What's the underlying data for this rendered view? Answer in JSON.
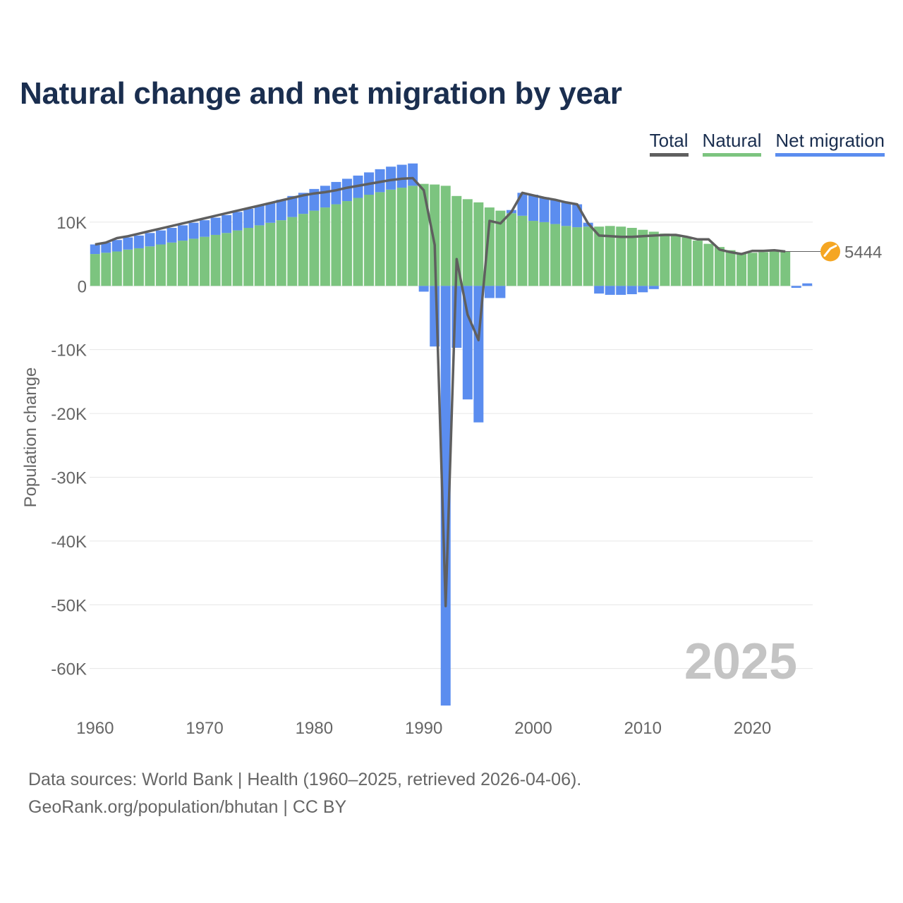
{
  "title": "Natural change and net migration by year",
  "legend": {
    "total": "Total",
    "natural": "Natural",
    "migration": "Net migration"
  },
  "colors": {
    "total": "#5f5f5f",
    "natural": "#7cc47f",
    "migration": "#5b8def",
    "grid": "#e6e6e6",
    "axis_text": "#666666",
    "year_watermark": "#c4c4c4",
    "badge": "#f5a623"
  },
  "footer": {
    "line1": "Data sources: World Bank | Health (1960–2025, retrieved 2026-04-06).",
    "line2": "GeoRank.org/population/bhutan | CC BY"
  },
  "chart_data": {
    "type": "bar",
    "stacked": true,
    "title": "Natural change and net migration by year",
    "xlabel": "",
    "ylabel": "Population change",
    "xlim": [
      1959.5,
      2025.5
    ],
    "ylim": [
      -68000,
      19500
    ],
    "yticks": [
      10000,
      0,
      -10000,
      -20000,
      -30000,
      -40000,
      -50000,
      -60000
    ],
    "ytick_labels": [
      "10K",
      "0",
      "-10K",
      "-20K",
      "-30K",
      "-40K",
      "-50K",
      "-60K"
    ],
    "xticks": [
      1960,
      1970,
      1980,
      1990,
      2000,
      2010,
      2020
    ],
    "xtick_labels": [
      "1960",
      "1970",
      "1980",
      "1990",
      "2000",
      "2010",
      "2020"
    ],
    "watermark_year": "2025",
    "end_label": "5444",
    "x": [
      1960,
      1961,
      1962,
      1963,
      1964,
      1965,
      1966,
      1967,
      1968,
      1969,
      1970,
      1971,
      1972,
      1973,
      1974,
      1975,
      1976,
      1977,
      1978,
      1979,
      1980,
      1981,
      1982,
      1983,
      1984,
      1985,
      1986,
      1987,
      1988,
      1989,
      1990,
      1991,
      1992,
      1993,
      1994,
      1995,
      1996,
      1997,
      1998,
      1999,
      2000,
      2001,
      2002,
      2003,
      2004,
      2005,
      2006,
      2007,
      2008,
      2009,
      2010,
      2011,
      2012,
      2013,
      2014,
      2015,
      2016,
      2017,
      2018,
      2019,
      2020,
      2021,
      2022,
      2023,
      2024,
      2025
    ],
    "series": [
      {
        "name": "Natural",
        "values": [
          5000,
          5200,
          5400,
          5700,
          5900,
          6200,
          6500,
          6800,
          7100,
          7400,
          7700,
          8000,
          8300,
          8700,
          9100,
          9500,
          9900,
          10300,
          10800,
          11300,
          11800,
          12300,
          12800,
          13300,
          13800,
          14300,
          14700,
          15100,
          15400,
          15700,
          16000,
          15900,
          15700,
          14100,
          13600,
          13100,
          12300,
          11800,
          11400,
          11000,
          10200,
          10000,
          9700,
          9400,
          9200,
          9300,
          9300,
          9400,
          9300,
          9100,
          8800,
          8500,
          8200,
          7900,
          7600,
          7100,
          6600,
          6100,
          5600,
          5100,
          5200,
          5300,
          5400,
          5400,
          0,
          0
        ]
      },
      {
        "name": "Net migration",
        "values": [
          1500,
          1600,
          1800,
          1900,
          2000,
          2100,
          2200,
          2300,
          2400,
          2500,
          2600,
          2700,
          2800,
          2900,
          3000,
          3100,
          3100,
          3200,
          3300,
          3300,
          3400,
          3400,
          3500,
          3500,
          3500,
          3500,
          3600,
          3600,
          3600,
          3500,
          -900,
          -9500,
          -65800,
          -9700,
          -17800,
          -21400,
          -1900,
          -1900,
          500,
          3600,
          4100,
          3900,
          3800,
          3700,
          3600,
          600,
          -1200,
          -1400,
          -1400,
          -1300,
          -1000,
          -500,
          0,
          0,
          0,
          0,
          0,
          0,
          0,
          0,
          0,
          0,
          0,
          0,
          -300,
          400
        ]
      },
      {
        "name": "Total",
        "values": [
          6500,
          6800,
          7500,
          7800,
          8200,
          8600,
          9000,
          9400,
          9800,
          10200,
          10600,
          11000,
          11400,
          11800,
          12200,
          12600,
          13000,
          13400,
          13800,
          14200,
          14500,
          14700,
          15000,
          15400,
          15700,
          16000,
          16300,
          16600,
          16800,
          16900,
          15000,
          6400,
          -50200,
          4200,
          -4500,
          -8500,
          10200,
          9800,
          11600,
          14600,
          14200,
          13800,
          13500,
          13100,
          12800,
          9800,
          7900,
          7800,
          7700,
          7700,
          7800,
          7900,
          8000,
          8000,
          7700,
          7300,
          7300,
          5700,
          5300,
          5000,
          5500,
          5500,
          5600,
          5400,
          null,
          null
        ]
      }
    ]
  }
}
